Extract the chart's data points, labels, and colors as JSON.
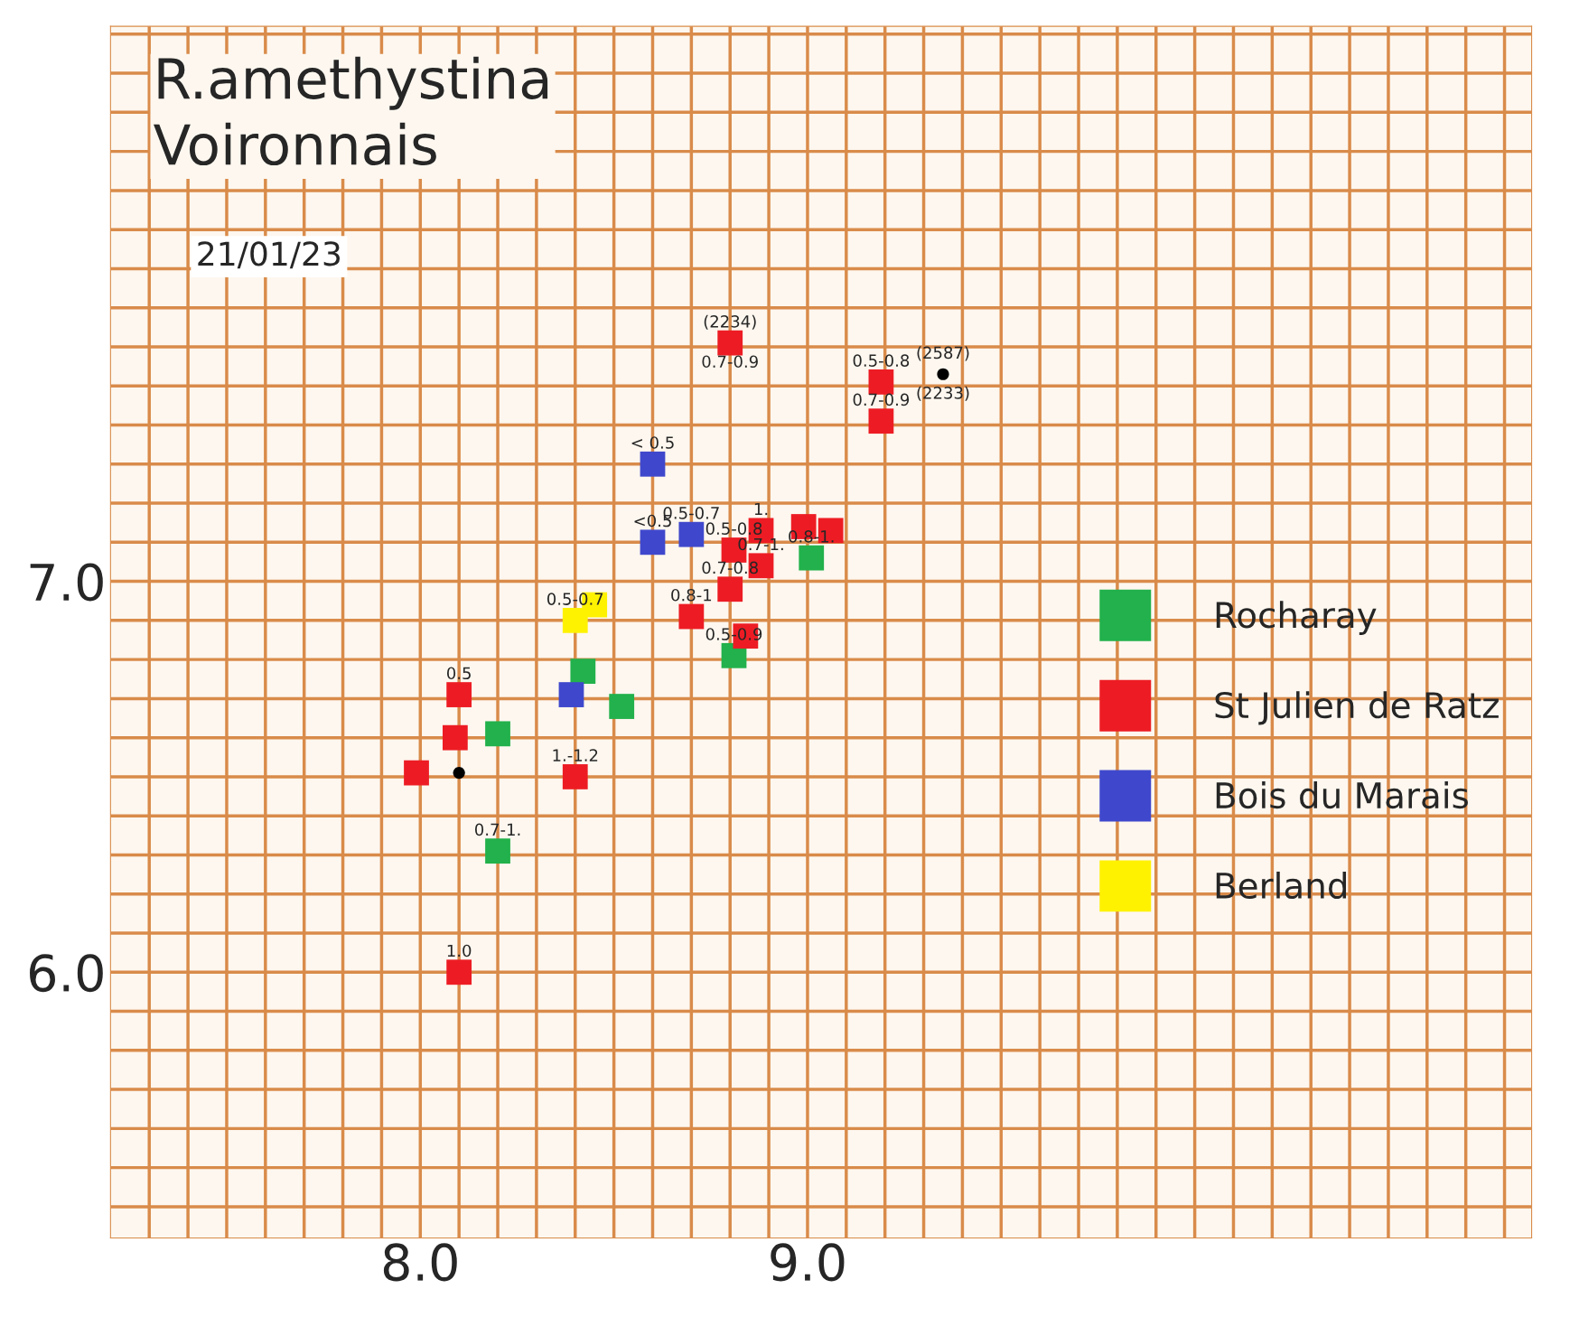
{
  "chart_data": {
    "type": "scatter",
    "title": "R.amethystina\nVoironnais",
    "subtitle": "21/01/23",
    "xlim": [
      7.2,
      10.87
    ],
    "ylim": [
      5.32,
      8.42
    ],
    "xticks": [
      {
        "value": 7.3,
        "label": null
      },
      {
        "value": 7.4,
        "label": null
      },
      {
        "value": 7.5,
        "label": null
      },
      {
        "value": 7.6,
        "label": null
      },
      {
        "value": 7.7,
        "label": null
      },
      {
        "value": 7.8,
        "label": null
      },
      {
        "value": 7.9,
        "label": null
      },
      {
        "value": 8.0,
        "label": "8.0"
      },
      {
        "value": 8.1,
        "label": null
      },
      {
        "value": 8.2,
        "label": null
      },
      {
        "value": 8.3,
        "label": null
      },
      {
        "value": 8.4,
        "label": null
      },
      {
        "value": 8.5,
        "label": null
      },
      {
        "value": 8.6,
        "label": null
      },
      {
        "value": 8.7,
        "label": null
      },
      {
        "value": 8.8,
        "label": null
      },
      {
        "value": 8.9,
        "label": null
      },
      {
        "value": 9.0,
        "label": "9.0"
      },
      {
        "value": 9.1,
        "label": null
      },
      {
        "value": 9.2,
        "label": null
      },
      {
        "value": 9.3,
        "label": null
      },
      {
        "value": 9.4,
        "label": null
      },
      {
        "value": 9.5,
        "label": null
      },
      {
        "value": 9.6,
        "label": null
      },
      {
        "value": 9.7,
        "label": null
      },
      {
        "value": 9.8,
        "label": null
      },
      {
        "value": 9.9,
        "label": null
      },
      {
        "value": 10.0,
        "label": null
      },
      {
        "value": 10.1,
        "label": null
      },
      {
        "value": 10.2,
        "label": null
      },
      {
        "value": 10.3,
        "label": null
      },
      {
        "value": 10.4,
        "label": null
      },
      {
        "value": 10.5,
        "label": null
      },
      {
        "value": 10.6,
        "label": null
      },
      {
        "value": 10.7,
        "label": null
      },
      {
        "value": 10.8,
        "label": null
      }
    ],
    "yticks": [
      {
        "value": 5.4,
        "label": null
      },
      {
        "value": 5.5,
        "label": null
      },
      {
        "value": 5.6,
        "label": null
      },
      {
        "value": 5.7,
        "label": null
      },
      {
        "value": 5.8,
        "label": null
      },
      {
        "value": 5.9,
        "label": null
      },
      {
        "value": 6.0,
        "label": "6.0"
      },
      {
        "value": 6.1,
        "label": null
      },
      {
        "value": 6.2,
        "label": null
      },
      {
        "value": 6.3,
        "label": null
      },
      {
        "value": 6.4,
        "label": null
      },
      {
        "value": 6.5,
        "label": null
      },
      {
        "value": 6.6,
        "label": null
      },
      {
        "value": 6.7,
        "label": null
      },
      {
        "value": 6.8,
        "label": null
      },
      {
        "value": 6.9,
        "label": null
      },
      {
        "value": 7.0,
        "label": "7.0"
      },
      {
        "value": 7.1,
        "label": null
      },
      {
        "value": 7.2,
        "label": null
      },
      {
        "value": 7.3,
        "label": null
      },
      {
        "value": 7.4,
        "label": null
      },
      {
        "value": 7.5,
        "label": null
      },
      {
        "value": 7.6,
        "label": null
      },
      {
        "value": 7.7,
        "label": null
      },
      {
        "value": 7.8,
        "label": null
      },
      {
        "value": 7.9,
        "label": null
      },
      {
        "value": 8.0,
        "label": null
      },
      {
        "value": 8.1,
        "label": null
      },
      {
        "value": 8.2,
        "label": null
      },
      {
        "value": 8.3,
        "label": null
      },
      {
        "value": 8.4,
        "label": null
      }
    ],
    "grid": true,
    "legend": "right",
    "marker": "square",
    "series": [
      {
        "name": "Rocharay",
        "color": "#22b14c",
        "x": [
          9.01,
          8.81,
          8.42,
          8.52,
          8.2,
          8.2
        ],
        "values": [
          7.06,
          6.81,
          6.77,
          6.68,
          6.61,
          6.31
        ]
      },
      {
        "name": "St Julien de Ratz",
        "color": "#ed1c24",
        "x": [
          8.8,
          9.19,
          9.19,
          8.88,
          8.99,
          9.06,
          8.81,
          8.88,
          8.8,
          8.7,
          8.84,
          8.1,
          8.09,
          7.99,
          8.4,
          8.1
        ],
        "values": [
          7.61,
          7.51,
          7.41,
          7.13,
          7.14,
          7.13,
          7.08,
          7.04,
          6.98,
          6.91,
          6.86,
          6.71,
          6.6,
          6.51,
          6.5,
          6.0
        ]
      },
      {
        "name": "Bois du Marais",
        "color": "#3f48cc",
        "x": [
          8.6,
          8.6,
          8.7,
          8.39
        ],
        "values": [
          7.3,
          7.1,
          7.12,
          6.71
        ]
      },
      {
        "name": "Berland",
        "color": "#fff200",
        "x": [
          8.45,
          8.4
        ],
        "values": [
          6.94,
          6.9
        ]
      },
      {
        "color": "#000000",
        "marker": "circle",
        "x": [
          8.1,
          9.35
        ],
        "values": [
          6.51,
          7.53
        ]
      }
    ],
    "annotations": [
      {
        "text": "(2234)",
        "x": 8.8,
        "y": 7.61
      },
      {
        "text": "(2587)",
        "x": 9.35,
        "y": 7.53
      },
      {
        "text": "(2233)",
        "x": 9.35,
        "y": 7.53
      },
      {
        "text": "0.7-0.9",
        "x": 8.8,
        "y": 7.61
      },
      {
        "text": "0.5-0.8",
        "x": 9.19,
        "y": 7.51
      },
      {
        "text": "0.7-0.9",
        "x": 9.19,
        "y": 7.41
      },
      {
        "text": "< 0.5",
        "x": 8.6,
        "y": 7.3
      },
      {
        "text": "<0.5",
        "x": 8.6,
        "y": 7.1
      },
      {
        "text": "0.5-0.7",
        "x": 8.7,
        "y": 7.12
      },
      {
        "text": "1.",
        "x": 8.88,
        "y": 7.13
      },
      {
        "text": "0.5-0.8",
        "x": 8.81,
        "y": 7.08
      },
      {
        "text": "0.7-1.",
        "x": 8.88,
        "y": 7.04
      },
      {
        "text": "0.8-1.",
        "x": 9.01,
        "y": 7.06
      },
      {
        "text": "0.7-0.8",
        "x": 8.8,
        "y": 6.98
      },
      {
        "text": "0.8-1",
        "x": 8.7,
        "y": 6.91
      },
      {
        "text": "0.5-0.9",
        "x": 8.81,
        "y": 6.81
      },
      {
        "text": "0.5-0.7",
        "x": 8.4,
        "y": 6.9
      },
      {
        "text": "0.5",
        "x": 8.1,
        "y": 6.71
      },
      {
        "text": "1.-1.2",
        "x": 8.4,
        "y": 6.5
      },
      {
        "text": "0.7-1.",
        "x": 8.2,
        "y": 6.31
      },
      {
        "text": "1.0",
        "x": 8.1,
        "y": 6.0
      }
    ]
  }
}
